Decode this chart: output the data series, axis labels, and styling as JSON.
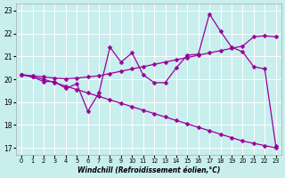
{
  "bg_color": "#c8eeee",
  "line_color": "#990099",
  "grid_color": "#ffffff",
  "xlabel": "Windchill (Refroidissement éolien,°C)",
  "x_ticks": [
    0,
    1,
    2,
    3,
    4,
    5,
    6,
    7,
    8,
    9,
    10,
    11,
    12,
    13,
    14,
    15,
    16,
    17,
    18,
    19,
    20,
    21,
    22,
    23
  ],
  "y_ticks": [
    17,
    18,
    19,
    20,
    21,
    22,
    23
  ],
  "xlim": [
    -0.5,
    23.5
  ],
  "ylim": [
    16.7,
    23.3
  ],
  "line1_y": [
    20.2,
    20.1,
    19.9,
    19.9,
    19.6,
    19.8,
    18.6,
    19.4,
    21.4,
    20.75,
    21.15,
    20.2,
    19.85,
    19.85,
    20.5,
    21.05,
    21.1,
    22.85,
    22.1,
    21.4,
    21.2,
    20.55,
    20.45,
    17.1
  ],
  "line2_y": [
    20.2,
    20.15,
    20.1,
    20.05,
    20.02,
    20.05,
    20.1,
    20.15,
    20.25,
    20.35,
    20.45,
    20.55,
    20.65,
    20.75,
    20.85,
    20.95,
    21.05,
    21.15,
    21.25,
    21.35,
    21.45,
    21.85,
    21.9,
    21.85
  ],
  "line3_y": [
    20.2,
    20.1,
    20.0,
    19.85,
    19.7,
    19.55,
    19.4,
    19.25,
    19.1,
    18.95,
    18.8,
    18.65,
    18.5,
    18.35,
    18.2,
    18.05,
    17.9,
    17.75,
    17.6,
    17.45,
    17.3,
    17.2,
    17.1,
    17.0
  ],
  "marker": "D",
  "marker_size": 2.5,
  "linewidth": 0.9
}
